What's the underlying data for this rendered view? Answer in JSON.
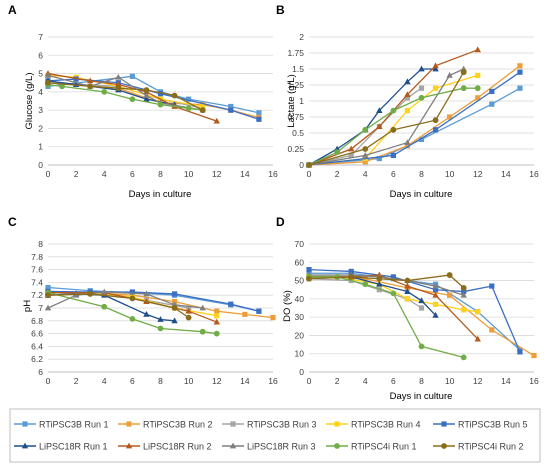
{
  "figure_legend": {
    "entries": [
      {
        "name": "RTiPSC3B Run 1",
        "color": "#5b9bd5",
        "marker": "square"
      },
      {
        "name": "RTiPSC3B Run 2",
        "color": "#ed9d3a",
        "marker": "square"
      },
      {
        "name": "RTiPSC3B Run 3",
        "color": "#a5a5a5",
        "marker": "square"
      },
      {
        "name": "RTiPSC3B Run 4",
        "color": "#ffd11a",
        "marker": "square"
      },
      {
        "name": "RTiPSC3B Run 5",
        "color": "#3b6fc4",
        "marker": "square"
      },
      {
        "name": "LiPSC18R Run 1",
        "color": "#1f4e8c",
        "marker": "triangle"
      },
      {
        "name": "LiPSC18R Run 2",
        "color": "#b5591c",
        "marker": "triangle"
      },
      {
        "name": "LiPSC18R Run 3",
        "color": "#7f7f7f",
        "marker": "triangle"
      },
      {
        "name": "RTiPSC4i Run 1",
        "color": "#70ad47",
        "marker": "circle"
      },
      {
        "name": "RTiPSC4i Run 2",
        "color": "#8a6d1a",
        "marker": "circle"
      }
    ]
  },
  "chart_data": [
    {
      "panel_label": "A",
      "type": "line",
      "xlabel": "Days in culture",
      "ylabel": "Glucose (g/L)",
      "xlim": [
        0,
        16
      ],
      "ylim": [
        0,
        7
      ],
      "xticks": [
        0,
        2,
        4,
        6,
        8,
        10,
        12,
        14,
        16
      ],
      "yticks": [
        0,
        1,
        2,
        3,
        4,
        5,
        6,
        7
      ],
      "grid": true,
      "series": [
        {
          "name": "RTiPSC3B Run 1",
          "x": [
            0,
            6,
            8,
            10,
            13,
            15
          ],
          "y": [
            4.3,
            4.85,
            4.0,
            3.6,
            3.2,
            2.85
          ]
        },
        {
          "name": "RTiPSC3B Run 2",
          "x": [
            0,
            5,
            8,
            11,
            13,
            15
          ],
          "y": [
            4.5,
            4.2,
            3.4,
            3.3,
            3.0,
            2.6
          ]
        },
        {
          "name": "RTiPSC3B Run 3",
          "x": [
            0,
            5,
            8,
            11
          ],
          "y": [
            4.5,
            4.3,
            3.6,
            3.1
          ]
        },
        {
          "name": "RTiPSC3B Run 4",
          "x": [
            0,
            2,
            5,
            8,
            11
          ],
          "y": [
            4.9,
            4.8,
            4.3,
            3.6,
            3.2
          ]
        },
        {
          "name": "RTiPSC3B Run 5",
          "x": [
            0,
            2,
            5,
            8,
            13,
            15
          ],
          "y": [
            4.6,
            4.7,
            4.5,
            3.9,
            3.0,
            2.5
          ]
        },
        {
          "name": "LiPSC18R Run 1",
          "x": [
            0,
            2,
            5,
            7,
            9
          ],
          "y": [
            4.6,
            4.4,
            4.1,
            3.6,
            3.3
          ]
        },
        {
          "name": "LiPSC18R Run 2",
          "x": [
            0,
            3,
            5,
            7,
            9,
            12
          ],
          "y": [
            5.0,
            4.6,
            4.4,
            4.0,
            3.2,
            2.4
          ]
        },
        {
          "name": "LiPSC18R Run 3",
          "x": [
            0,
            3,
            5,
            7,
            8,
            11
          ],
          "y": [
            4.9,
            4.3,
            4.8,
            3.8,
            3.4,
            3.0
          ]
        },
        {
          "name": "RTiPSC4i Run 1",
          "x": [
            0,
            1,
            4,
            6,
            8,
            10,
            11
          ],
          "y": [
            4.4,
            4.3,
            4.0,
            3.6,
            3.3,
            3.1,
            3.0
          ]
        },
        {
          "name": "RTiPSC4i Run 2",
          "x": [
            0,
            3,
            5,
            7,
            9,
            11
          ],
          "y": [
            4.5,
            4.3,
            4.2,
            4.1,
            3.8,
            3.0
          ]
        }
      ]
    },
    {
      "panel_label": "B",
      "type": "line",
      "xlabel": "Days in culture",
      "ylabel": "Lactate (g/L)",
      "xlim": [
        0,
        16
      ],
      "ylim": [
        0,
        2
      ],
      "xticks": [
        0,
        2,
        4,
        6,
        8,
        10,
        12,
        14,
        16
      ],
      "yticks": [
        0,
        0.25,
        0.5,
        0.75,
        1,
        1.25,
        1.5,
        1.75,
        2
      ],
      "ytick_labels": [
        "0",
        "0.25",
        "0.5",
        "0.75",
        "1",
        "1.25",
        "1.5",
        "1.75",
        "2"
      ],
      "grid": true,
      "series": [
        {
          "name": "RTiPSC3B Run 1",
          "x": [
            0,
            5,
            8,
            13,
            15
          ],
          "y": [
            0.0,
            0.1,
            0.4,
            0.95,
            1.2
          ]
        },
        {
          "name": "RTiPSC3B Run 2",
          "x": [
            0,
            4,
            7,
            10,
            12,
            15
          ],
          "y": [
            0.0,
            0.05,
            0.3,
            0.75,
            1.05,
            1.55
          ]
        },
        {
          "name": "RTiPSC3B Run 3",
          "x": [
            0,
            3,
            5,
            7,
            8
          ],
          "y": [
            0.0,
            0.15,
            0.6,
            1.05,
            1.2
          ]
        },
        {
          "name": "RTiPSC3B Run 4",
          "x": [
            0,
            4,
            7,
            9,
            12
          ],
          "y": [
            0.0,
            0.1,
            0.85,
            1.2,
            1.4
          ]
        },
        {
          "name": "RTiPSC3B Run 5",
          "x": [
            0,
            6,
            9,
            13,
            15
          ],
          "y": [
            0.0,
            0.15,
            0.55,
            1.15,
            1.45
          ]
        },
        {
          "name": "LiPSC18R Run 1",
          "x": [
            0,
            2,
            4,
            5,
            7,
            8,
            9
          ],
          "y": [
            0.0,
            0.25,
            0.55,
            0.85,
            1.3,
            1.5,
            1.5
          ]
        },
        {
          "name": "LiPSC18R Run 2",
          "x": [
            0,
            3,
            5,
            7,
            9,
            12
          ],
          "y": [
            0.0,
            0.25,
            0.6,
            1.1,
            1.55,
            1.8
          ]
        },
        {
          "name": "LiPSC18R Run 3",
          "x": [
            0,
            4,
            7,
            10,
            11
          ],
          "y": [
            0.0,
            0.15,
            0.35,
            1.4,
            1.5
          ]
        },
        {
          "name": "RTiPSC4i Run 1",
          "x": [
            0,
            2,
            4,
            6,
            8,
            11,
            12
          ],
          "y": [
            0.0,
            0.2,
            0.55,
            0.85,
            1.05,
            1.2,
            1.2
          ]
        },
        {
          "name": "RTiPSC4i Run 2",
          "x": [
            0,
            4,
            6,
            9,
            11
          ],
          "y": [
            0.0,
            0.25,
            0.55,
            0.7,
            1.45
          ]
        }
      ]
    },
    {
      "panel_label": "C",
      "type": "line",
      "xlabel": "",
      "ylabel": "pH",
      "xlim": [
        0,
        16
      ],
      "ylim": [
        6,
        8
      ],
      "xticks": [
        0,
        2,
        4,
        6,
        8,
        10,
        12,
        14,
        16
      ],
      "yticks": [
        6,
        6.2,
        6.4,
        6.6,
        6.8,
        7,
        7.2,
        7.4,
        7.6,
        7.8,
        8
      ],
      "ytick_labels": [
        "6",
        "6.2",
        "6.4",
        "6.6",
        "6.8",
        "7",
        "7.2",
        "7.4",
        "7.6",
        "7.8",
        "8"
      ],
      "grid": true,
      "series": [
        {
          "name": "RTiPSC3B Run 1",
          "x": [
            0,
            3,
            6,
            9,
            13,
            15
          ],
          "y": [
            7.32,
            7.27,
            7.24,
            7.2,
            7.05,
            6.95
          ]
        },
        {
          "name": "RTiPSC3B Run 2",
          "x": [
            0,
            3,
            6,
            9,
            12,
            14,
            16
          ],
          "y": [
            7.2,
            7.24,
            7.2,
            7.1,
            6.95,
            6.9,
            6.85
          ]
        },
        {
          "name": "RTiPSC3B Run 3",
          "x": [
            0,
            4,
            7,
            10
          ],
          "y": [
            7.24,
            7.22,
            7.12,
            7.0
          ]
        },
        {
          "name": "RTiPSC3B Run 4",
          "x": [
            0,
            3,
            6,
            9,
            12
          ],
          "y": [
            7.25,
            7.24,
            7.17,
            7.0,
            6.88
          ]
        },
        {
          "name": "RTiPSC3B Run 5",
          "x": [
            0,
            3,
            6,
            9,
            13,
            15
          ],
          "y": [
            7.26,
            7.25,
            7.25,
            7.22,
            7.06,
            6.95
          ]
        },
        {
          "name": "LiPSC18R Run 1",
          "x": [
            0,
            2,
            4,
            7,
            8,
            9
          ],
          "y": [
            7.2,
            7.22,
            7.2,
            6.9,
            6.82,
            6.8
          ]
        },
        {
          "name": "LiPSC18R Run 2",
          "x": [
            0,
            4,
            7,
            10,
            12
          ],
          "y": [
            7.24,
            7.24,
            7.1,
            6.95,
            6.78
          ]
        },
        {
          "name": "LiPSC18R Run 3",
          "x": [
            0,
            2,
            4,
            7,
            9,
            11
          ],
          "y": [
            7.0,
            7.2,
            7.25,
            7.22,
            7.05,
            7.0
          ]
        },
        {
          "name": "RTiPSC4i Run 1",
          "x": [
            0,
            4,
            6,
            8,
            11,
            12
          ],
          "y": [
            7.24,
            7.02,
            6.83,
            6.68,
            6.63,
            6.6
          ]
        },
        {
          "name": "RTiPSC4i Run 2",
          "x": [
            0,
            3,
            6,
            9,
            10
          ],
          "y": [
            7.2,
            7.22,
            7.15,
            7.0,
            6.85
          ]
        }
      ]
    },
    {
      "panel_label": "D",
      "type": "line",
      "xlabel": "Days in culture",
      "ylabel": "DO (%)",
      "xlim": [
        0,
        16
      ],
      "ylim": [
        0,
        70
      ],
      "xticks": [
        0,
        2,
        4,
        6,
        8,
        10,
        12,
        14,
        16
      ],
      "yticks": [
        0,
        10,
        20,
        30,
        40,
        50,
        60,
        70
      ],
      "grid": true,
      "series": [
        {
          "name": "RTiPSC3B Run 1",
          "x": [
            0,
            3,
            6,
            9,
            12,
            15
          ],
          "y": [
            54,
            54,
            51,
            48,
            33,
            12
          ]
        },
        {
          "name": "RTiPSC3B Run 2",
          "x": [
            0,
            4,
            7,
            10,
            13,
            16
          ],
          "y": [
            52,
            51,
            46,
            42,
            23,
            9
          ]
        },
        {
          "name": "RTiPSC3B Run 3",
          "x": [
            0,
            3,
            5,
            7,
            8
          ],
          "y": [
            51,
            50,
            45,
            40,
            35
          ]
        },
        {
          "name": "RTiPSC3B Run 4",
          "x": [
            0,
            2,
            5,
            7,
            9,
            11,
            12
          ],
          "y": [
            52,
            52,
            48,
            40,
            37,
            34,
            33
          ]
        },
        {
          "name": "RTiPSC3B Run 5",
          "x": [
            0,
            3,
            6,
            9,
            11,
            13,
            15
          ],
          "y": [
            56,
            55,
            52,
            45,
            44,
            47,
            11
          ]
        },
        {
          "name": "LiPSC18R Run 1",
          "x": [
            0,
            3,
            5,
            7,
            8,
            9
          ],
          "y": [
            52,
            52,
            48,
            44,
            39,
            31
          ]
        },
        {
          "name": "LiPSC18R Run 2",
          "x": [
            0,
            3,
            5,
            7,
            9,
            12
          ],
          "y": [
            52,
            52,
            53,
            47,
            42,
            18
          ]
        },
        {
          "name": "LiPSC18R Run 3",
          "x": [
            0,
            3,
            5,
            7,
            9,
            11
          ],
          "y": [
            53,
            53,
            52,
            50,
            47,
            42
          ]
        },
        {
          "name": "RTiPSC4i Run 1",
          "x": [
            0,
            2,
            4,
            6,
            8,
            11
          ],
          "y": [
            52,
            52,
            48,
            43,
            14,
            8
          ]
        },
        {
          "name": "RTiPSC4i Run 2",
          "x": [
            0,
            3,
            5,
            7,
            10,
            11
          ],
          "y": [
            51,
            52,
            51,
            50,
            53,
            46
          ]
        }
      ]
    }
  ]
}
